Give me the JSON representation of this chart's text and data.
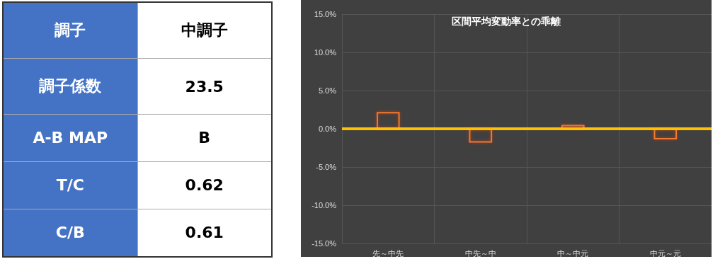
{
  "chart_data": [
    {
      "type": "other",
      "color": "#4472c4",
      "annotations": [
        "調子",
        "中調子",
        "調子係数",
        "23.5",
        "A-B MAP",
        "B",
        "T/C",
        "0.62",
        "C/B",
        "0.61"
      ]
    },
    {
      "type": "bar",
      "title": "区間平均変動率との乖離",
      "categories": [
        "先～中先",
        "中先～中",
        "中～中元",
        "中元～元"
      ],
      "series": [
        {
          "color": "#f4782e",
          "values": [
            2.2,
            -1.8,
            0.5,
            -1.4
          ]
        }
      ],
      "ylim": [
        -15,
        15
      ],
      "yticks": [
        {
          "value": -15,
          "label": "-15.0%"
        },
        {
          "value": -10,
          "label": "-10.0%"
        },
        {
          "value": -5,
          "label": "-5.0%"
        },
        {
          "value": 0,
          "label": "0.0%"
        },
        {
          "value": 5,
          "label": "5.0%"
        },
        {
          "value": 10,
          "label": "10.0%"
        },
        {
          "value": 15,
          "label": "15.0%"
        }
      ],
      "grid": true,
      "ref_lines": [
        {
          "axis": "y",
          "value": 0,
          "color": "#ffc000"
        }
      ]
    }
  ]
}
